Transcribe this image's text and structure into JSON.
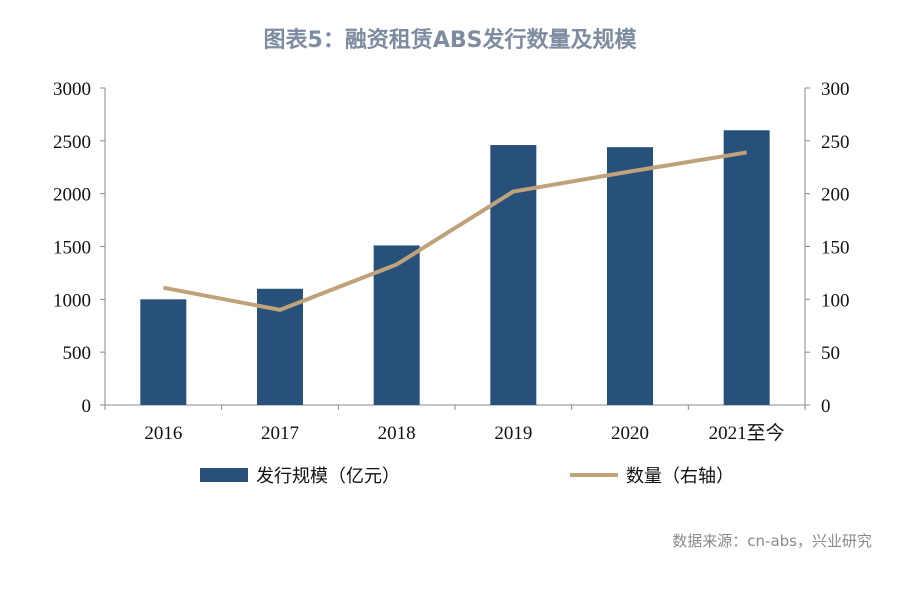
{
  "title": "图表5：融资租赁ABS发行数量及规模",
  "source": "数据来源：cn-abs，兴业研究",
  "chart_data": {
    "type": "bar+line",
    "categories": [
      "2016",
      "2017",
      "2018",
      "2019",
      "2020",
      "2021至今"
    ],
    "series": [
      {
        "name": "发行规模（亿元）",
        "type": "bar",
        "axis": "left",
        "color": "#27507a",
        "values": [
          1000,
          1100,
          1510,
          2460,
          2440,
          2600
        ]
      },
      {
        "name": "数量（右轴）",
        "type": "line",
        "axis": "right",
        "color": "#bfa27a",
        "values": [
          111,
          90,
          133,
          202,
          221,
          239
        ]
      }
    ],
    "y_left": {
      "range": [
        0,
        3000
      ],
      "ticks": [
        0,
        500,
        1000,
        1500,
        2000,
        2500,
        3000
      ]
    },
    "y_right": {
      "range": [
        0,
        300
      ],
      "ticks": [
        0,
        50,
        100,
        150,
        200,
        250,
        300
      ]
    },
    "grid": false,
    "legend": "bottom"
  }
}
